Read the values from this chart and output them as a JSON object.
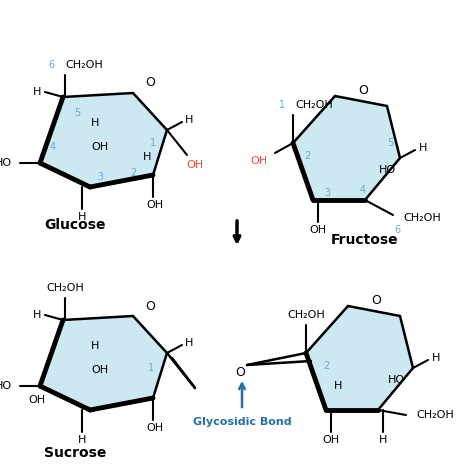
{
  "bg_color": "#ffffff",
  "ring_fill": "#cce8f0",
  "number_color": "#5dade2",
  "oh_red_color": "#e74c3c",
  "bond_color": "#000000",
  "glycosidic_color": "#2471a3",
  "glucose_label": "Glucose",
  "fructose_label": "Fructose",
  "sucrose_label": "Sucrose",
  "glycosidic_label": "Glycosidic Bond"
}
